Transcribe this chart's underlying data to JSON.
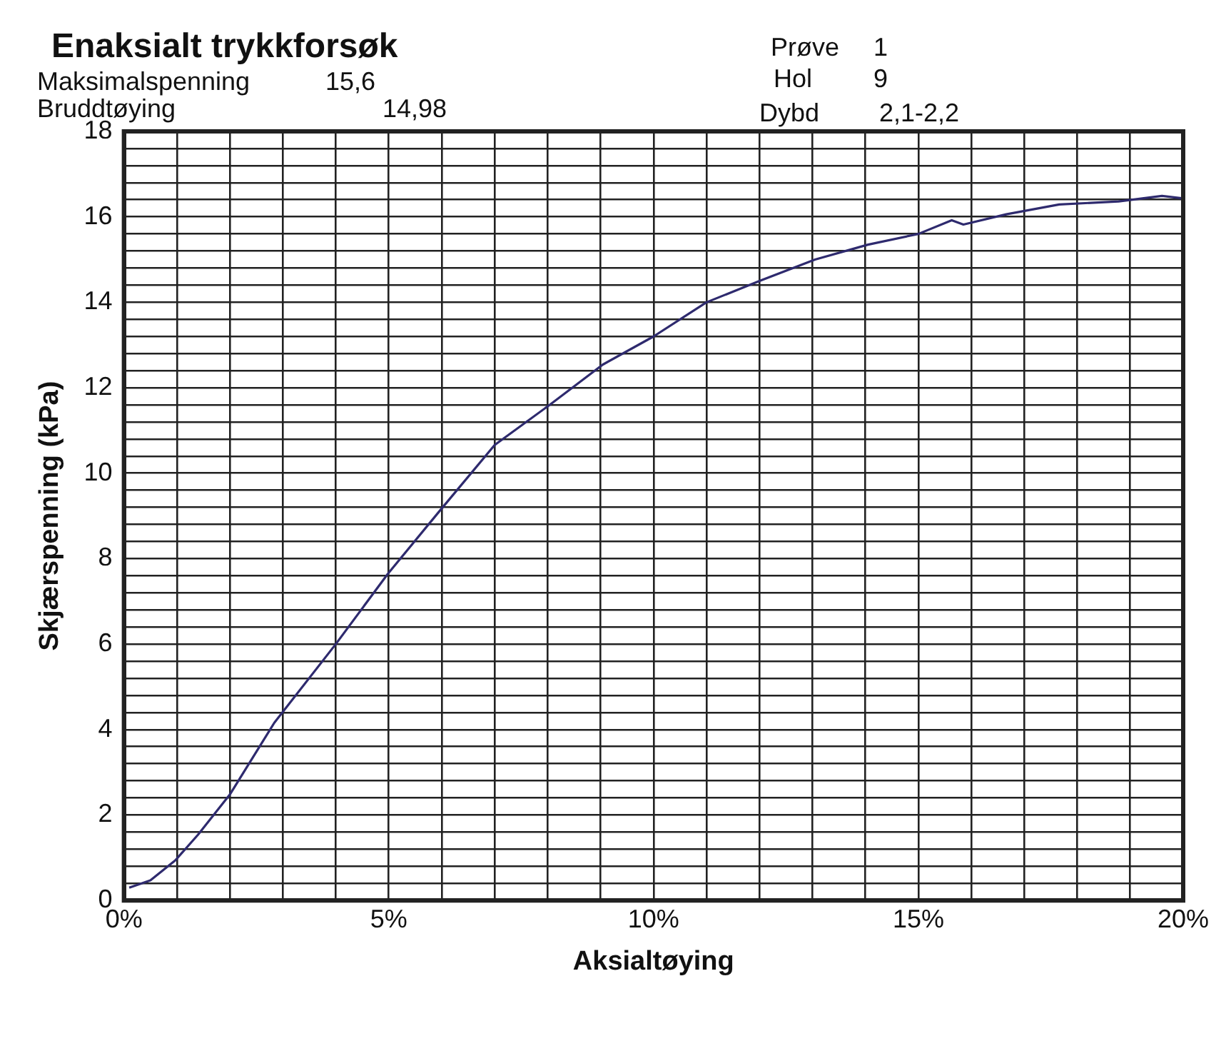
{
  "chart_data": {
    "type": "line",
    "title": "Enaksialt trykkforsøk",
    "annotations": [
      "Maksimalspenning",
      "15,6",
      "Bruddtøying",
      "14,98",
      "Prøve",
      "1",
      "Hol",
      "9",
      "Dybd",
      "2,1-2,2"
    ],
    "xlabel": "Aksialtøying",
    "ylabel": "Skjærspenning (kPa)",
    "x": [
      0.1,
      0.5,
      0.97,
      1.4,
      2.0,
      2.84,
      4.0,
      4.98,
      5.95,
      7.0,
      8.04,
      9.04,
      10.0,
      11.0,
      12.0,
      13.05,
      14.05,
      15.0,
      15.63,
      15.85,
      16.66,
      17.66,
      18.78,
      19.6,
      20.0
    ],
    "series": [
      {
        "color": "#2e2a6e",
        "values": [
          0.3,
          0.47,
          0.94,
          1.54,
          2.48,
          4.16,
          6.0,
          7.64,
          9.1,
          10.66,
          11.6,
          12.54,
          13.2,
          14.0,
          14.5,
          15.0,
          15.35,
          15.6,
          15.92,
          15.82,
          16.06,
          16.29,
          16.36,
          16.49,
          16.43
        ]
      }
    ],
    "xlim": [
      0,
      20
    ],
    "xticks": [
      {
        "value": 0,
        "label": "0%"
      },
      {
        "value": 1,
        "label": null
      },
      {
        "value": 2,
        "label": null
      },
      {
        "value": 3,
        "label": null
      },
      {
        "value": 4,
        "label": null
      },
      {
        "value": 5,
        "label": "5%"
      },
      {
        "value": 6,
        "label": null
      },
      {
        "value": 7,
        "label": null
      },
      {
        "value": 8,
        "label": null
      },
      {
        "value": 9,
        "label": null
      },
      {
        "value": 10,
        "label": "10%"
      },
      {
        "value": 11,
        "label": null
      },
      {
        "value": 12,
        "label": null
      },
      {
        "value": 13,
        "label": null
      },
      {
        "value": 14,
        "label": null
      },
      {
        "value": 15,
        "label": "15%"
      },
      {
        "value": 16,
        "label": null
      },
      {
        "value": 17,
        "label": null
      },
      {
        "value": 18,
        "label": null
      },
      {
        "value": 19,
        "label": null
      },
      {
        "value": 20,
        "label": "20%"
      }
    ],
    "ylim": [
      0,
      18
    ],
    "yticks": [
      0,
      {
        "value": 0.4,
        "label": null
      },
      {
        "value": 0.8,
        "label": null
      },
      {
        "value": 1.2,
        "label": null
      },
      {
        "value": 1.6,
        "label": null
      },
      2,
      {
        "value": 2.4,
        "label": null
      },
      {
        "value": 2.8,
        "label": null
      },
      {
        "value": 3.2,
        "label": null
      },
      {
        "value": 3.6,
        "label": null
      },
      4,
      {
        "value": 4.4,
        "label": null
      },
      {
        "value": 4.8,
        "label": null
      },
      {
        "value": 5.2,
        "label": null
      },
      {
        "value": 5.6,
        "label": null
      },
      6,
      {
        "value": 6.4,
        "label": null
      },
      {
        "value": 6.8,
        "label": null
      },
      {
        "value": 7.2,
        "label": null
      },
      {
        "value": 7.6,
        "label": null
      },
      8,
      {
        "value": 8.4,
        "label": null
      },
      {
        "value": 8.8,
        "label": null
      },
      {
        "value": 9.2,
        "label": null
      },
      {
        "value": 9.6,
        "label": null
      },
      10,
      {
        "value": 10.4,
        "label": null
      },
      {
        "value": 10.8,
        "label": null
      },
      {
        "value": 11.2,
        "label": null
      },
      {
        "value": 11.6,
        "label": null
      },
      12,
      {
        "value": 12.4,
        "label": null
      },
      {
        "value": 12.8,
        "label": null
      },
      {
        "value": 13.2,
        "label": null
      },
      {
        "value": 13.6,
        "label": null
      },
      14,
      {
        "value": 14.4,
        "label": null
      },
      {
        "value": 14.8,
        "label": null
      },
      {
        "value": 15.2,
        "label": null
      },
      {
        "value": 15.6,
        "label": null
      },
      16,
      {
        "value": 16.4,
        "label": null
      },
      {
        "value": 16.8,
        "label": null
      },
      {
        "value": 17.2,
        "label": null
      },
      {
        "value": 17.6,
        "label": null
      },
      18
    ],
    "grid": true,
    "marker": "none",
    "line_style": "solid"
  }
}
